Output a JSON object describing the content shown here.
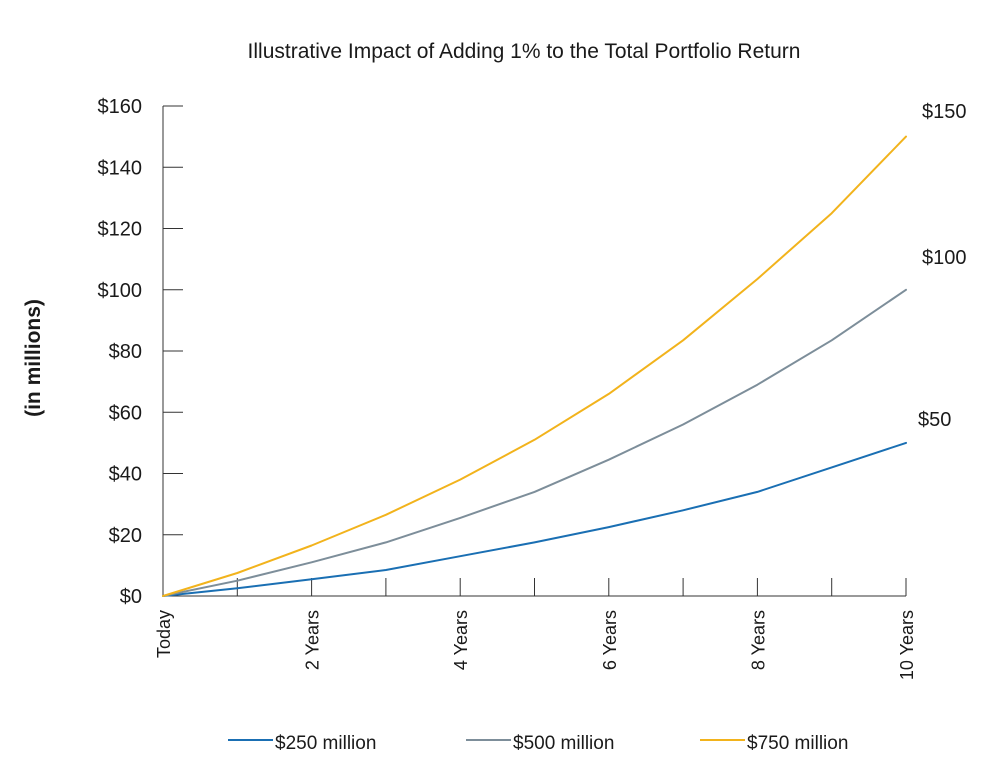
{
  "chart_data": {
    "type": "line",
    "title": "Illustrative Impact of Adding 1% to the Total Portfolio Return",
    "ylabel": "(in millions)",
    "xlabel": "",
    "x": [
      0,
      1,
      2,
      3,
      4,
      5,
      6,
      7,
      8,
      9,
      10
    ],
    "x_tick_labels": [
      {
        "x": 0,
        "label": "Today"
      },
      {
        "x": 2,
        "label": "2 Years"
      },
      {
        "x": 4,
        "label": "4 Years"
      },
      {
        "x": 6,
        "label": "6 Years"
      },
      {
        "x": 8,
        "label": "8 Years"
      },
      {
        "x": 10,
        "label": "10 Years"
      }
    ],
    "y_ticks": [
      0,
      20,
      40,
      60,
      80,
      100,
      120,
      140,
      160
    ],
    "y_tick_labels": [
      "$0",
      "$20",
      "$40",
      "$60",
      "$80",
      "$100",
      "$120",
      "$140",
      "$160"
    ],
    "ylim": [
      0,
      160
    ],
    "xlim": [
      0,
      10
    ],
    "grid": false,
    "legend_position": "bottom",
    "series": [
      {
        "name": "$250 million",
        "color": "#1a6fb3",
        "end_label": "$50",
        "values": [
          0,
          2.5,
          5.5,
          8.5,
          13,
          17.5,
          22.5,
          28,
          34,
          42,
          50
        ]
      },
      {
        "name": "$500 million",
        "color": "#7d8e9a",
        "end_label": "$100",
        "values": [
          0,
          5,
          11,
          17.5,
          25.5,
          34,
          44.5,
          56,
          69,
          83.5,
          100
        ]
      },
      {
        "name": "$750 million",
        "color": "#f2b31c",
        "end_label": "$150",
        "values": [
          0,
          7.5,
          16.5,
          26.5,
          38,
          51,
          66,
          83.5,
          103.5,
          125,
          150
        ]
      }
    ]
  }
}
